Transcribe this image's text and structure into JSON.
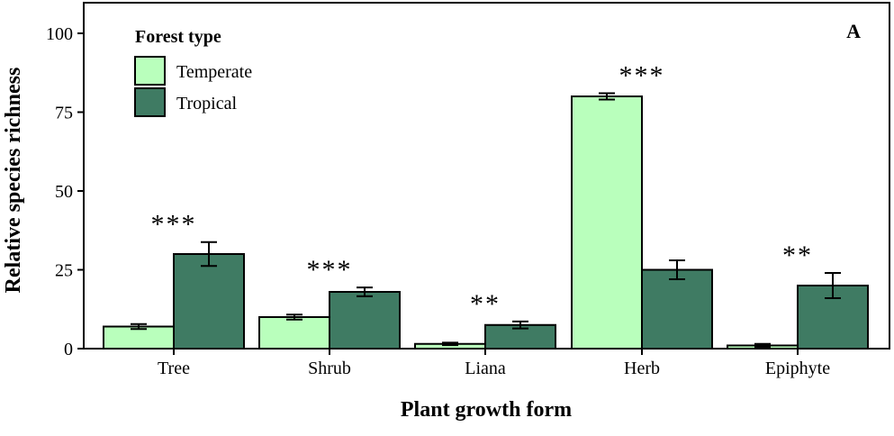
{
  "chart_data": {
    "type": "bar",
    "panel_label": "A",
    "xlabel": "Plant growth form",
    "ylabel": "Relative species richness",
    "categories": [
      "Tree",
      "Shrub",
      "Liana",
      "Herb",
      "Epiphyte"
    ],
    "ylim": [
      0,
      110
    ],
    "yticks": [
      0,
      25,
      50,
      75,
      100
    ],
    "ytick_labels": [
      "0",
      "25",
      "50",
      "75",
      "100"
    ],
    "grid": false,
    "legend": {
      "title": "Forest type",
      "placement": "top-left"
    },
    "series": [
      {
        "name": "Temperate",
        "color": "#b9ffbc",
        "values": [
          7,
          10,
          1.5,
          80,
          1
        ],
        "errors": [
          0.8,
          0.8,
          0.4,
          1,
          0.5
        ]
      },
      {
        "name": "Tropical",
        "color": "#3f7b63",
        "values": [
          30,
          18,
          7.5,
          25,
          20
        ],
        "errors": [
          3.8,
          1.4,
          1.1,
          3.0,
          4.0
        ]
      }
    ],
    "significance": [
      "***",
      "***",
      "**",
      "***",
      "**"
    ]
  }
}
